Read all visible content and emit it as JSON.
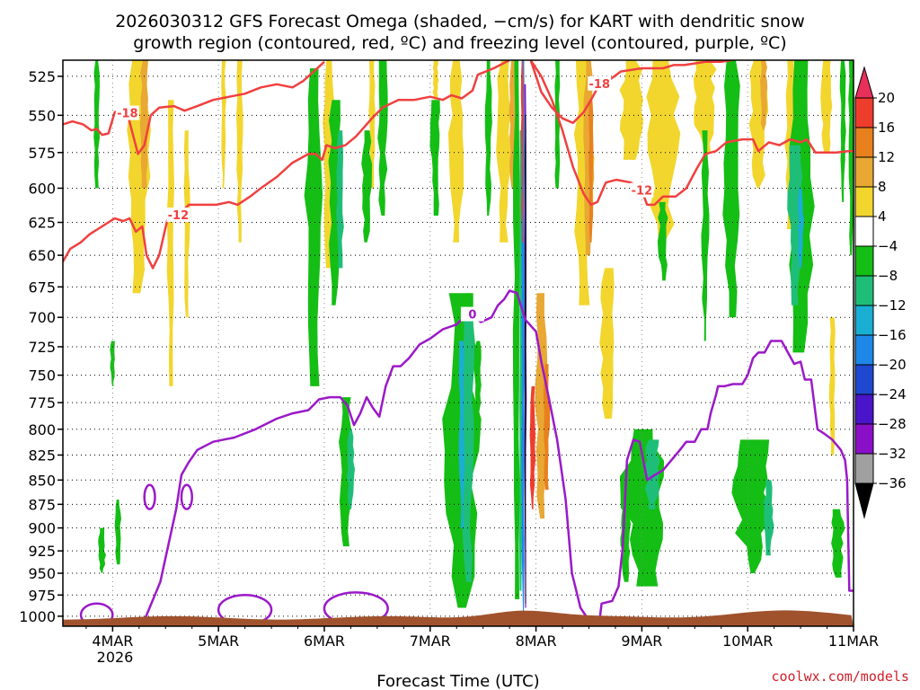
{
  "title_line1": "2026030312 GFS Forecast Omega (shaded, −cm/s) for KART with dendritic snow",
  "title_line2": "growth region (contoured, red, ºC) and freezing level (contoured, purple, ºC)",
  "credit": "coolwx.com/models",
  "chart_data": {
    "type": "heatmap",
    "title": "2026030312 GFS Forecast Omega (shaded, −cm/s) for KART with dendritic snow growth region (contoured, red, ºC) and freezing level (contoured, purple, ºC)",
    "xlabel": "Forecast Time (UTC)",
    "ylabel": "",
    "x_ticks": [
      "4MAR",
      "5MAR",
      "6MAR",
      "7MAR",
      "8MAR",
      "9MAR",
      "10MAR",
      "11MAR"
    ],
    "x_year": "2026",
    "x_range_days": [
      3.53,
      11.0
    ],
    "y_ticks": [
      525,
      550,
      575,
      600,
      625,
      650,
      675,
      700,
      725,
      750,
      775,
      800,
      825,
      850,
      875,
      900,
      925,
      950,
      975,
      1000
    ],
    "y_range_hpa": [
      515,
      1012
    ],
    "y_scale": "log",
    "grid": "dotted",
    "colorbar": {
      "labels": [
        "20",
        "16",
        "12",
        "8",
        "4",
        "−4",
        "−8",
        "−12",
        "−16",
        "−20",
        "−24",
        "−28",
        "−32",
        "−36"
      ],
      "levels": [
        20,
        16,
        12,
        8,
        4,
        -4,
        -8,
        -12,
        -16,
        -20,
        -24,
        -28,
        -32,
        -36
      ],
      "colors": [
        "#e8305a",
        "#ee3d2d",
        "#e8801e",
        "#e8a833",
        "#f2d62e",
        "#ffffff",
        "#14be14",
        "#1fbe78",
        "#1aaed2",
        "#1e88e8",
        "#1f48d0",
        "#4a14c8",
        "#8a10c8",
        "#a0a0a0",
        "#000000"
      ]
    },
    "series": [
      {
        "name": "dendritic_upper_-18C",
        "color": "#f04040",
        "label": "-18",
        "points": [
          [
            3.53,
            556
          ],
          [
            3.62,
            554
          ],
          [
            3.72,
            556
          ],
          [
            3.8,
            560
          ],
          [
            3.85,
            559
          ],
          [
            3.9,
            563
          ],
          [
            3.96,
            562
          ],
          [
            4.02,
            548
          ],
          [
            4.08,
            546
          ],
          [
            4.14,
            549
          ],
          [
            4.2,
            565
          ],
          [
            4.24,
            576
          ],
          [
            4.3,
            570
          ],
          [
            4.36,
            550
          ],
          [
            4.44,
            545
          ],
          [
            4.58,
            544
          ],
          [
            4.68,
            547
          ],
          [
            4.8,
            544
          ],
          [
            4.95,
            540
          ],
          [
            5.1,
            538
          ],
          [
            5.25,
            536
          ],
          [
            5.4,
            532
          ],
          [
            5.55,
            530
          ],
          [
            5.7,
            532
          ],
          [
            5.8,
            528
          ],
          [
            5.9,
            522
          ],
          [
            6.0,
            516
          ]
        ]
      },
      {
        "name": "dendritic_lower_-12C",
        "color": "#f04040",
        "label": "-12",
        "points": [
          [
            3.53,
            655
          ],
          [
            3.6,
            645
          ],
          [
            3.7,
            640
          ],
          [
            3.78,
            634
          ],
          [
            3.86,
            630
          ],
          [
            3.94,
            626
          ],
          [
            4.02,
            622
          ],
          [
            4.1,
            624
          ],
          [
            4.16,
            622
          ],
          [
            4.22,
            632
          ],
          [
            4.28,
            628
          ],
          [
            4.32,
            650
          ],
          [
            4.38,
            660
          ],
          [
            4.44,
            650
          ],
          [
            4.52,
            622
          ],
          [
            4.62,
            620
          ],
          [
            4.72,
            612
          ],
          [
            4.85,
            612
          ],
          [
            4.98,
            612
          ],
          [
            5.1,
            610
          ],
          [
            5.18,
            612
          ],
          [
            5.3,
            606
          ],
          [
            5.4,
            600
          ],
          [
            5.55,
            592
          ],
          [
            5.7,
            582
          ],
          [
            5.85,
            576
          ],
          [
            5.92,
            576
          ],
          [
            5.98,
            580
          ],
          [
            6.02,
            570
          ],
          [
            6.1,
            572
          ],
          [
            6.2,
            570
          ],
          [
            6.3,
            564
          ],
          [
            6.45,
            552
          ],
          [
            6.55,
            545
          ],
          [
            6.7,
            540
          ],
          [
            6.85,
            540
          ],
          [
            7.0,
            538
          ],
          [
            7.12,
            540
          ],
          [
            7.2,
            537
          ],
          [
            7.3,
            539
          ],
          [
            7.4,
            534
          ],
          [
            7.45,
            524
          ],
          [
            7.6,
            520
          ],
          [
            7.75,
            515
          ]
        ]
      },
      {
        "name": "dendritic_-18C_right",
        "color": "#f04040",
        "label": "-18",
        "points": [
          [
            7.95,
            515
          ],
          [
            8.05,
            535
          ],
          [
            8.15,
            545
          ],
          [
            8.25,
            552
          ],
          [
            8.35,
            555
          ],
          [
            8.45,
            548
          ],
          [
            8.52,
            540
          ],
          [
            8.6,
            530
          ],
          [
            8.68,
            528
          ],
          [
            8.76,
            524
          ],
          [
            8.8,
            522
          ],
          [
            8.9,
            521
          ],
          [
            9.0,
            520
          ],
          [
            9.1,
            520
          ],
          [
            9.2,
            520
          ],
          [
            9.3,
            518
          ],
          [
            9.4,
            518
          ],
          [
            9.6,
            516
          ],
          [
            9.75,
            516
          ],
          [
            9.85,
            515
          ]
        ]
      },
      {
        "name": "dendritic_-12C_right",
        "color": "#f04040",
        "label": "-12",
        "points": [
          [
            7.95,
            515
          ],
          [
            8.05,
            525
          ],
          [
            8.15,
            540
          ],
          [
            8.25,
            560
          ],
          [
            8.35,
            585
          ],
          [
            8.45,
            604
          ],
          [
            8.52,
            612
          ],
          [
            8.58,
            610
          ],
          [
            8.66,
            596
          ],
          [
            8.76,
            594
          ],
          [
            8.9,
            596
          ],
          [
            9.0,
            602
          ],
          [
            9.05,
            612
          ],
          [
            9.12,
            612
          ],
          [
            9.2,
            606
          ],
          [
            9.32,
            606
          ],
          [
            9.42,
            600
          ],
          [
            9.52,
            586
          ],
          [
            9.6,
            576
          ],
          [
            9.7,
            574
          ],
          [
            9.8,
            568
          ],
          [
            9.95,
            566
          ],
          [
            10.05,
            566
          ],
          [
            10.1,
            574
          ],
          [
            10.2,
            568
          ],
          [
            10.3,
            570
          ],
          [
            10.4,
            566
          ],
          [
            10.5,
            568
          ],
          [
            10.56,
            566
          ],
          [
            10.64,
            575
          ],
          [
            10.72,
            575
          ],
          [
            10.84,
            575
          ],
          [
            10.95,
            574
          ],
          [
            11.0,
            574
          ]
        ]
      },
      {
        "name": "freezing_level_0C",
        "color": "#9b19c8",
        "label": "0",
        "points": [
          [
            4.3,
            1005
          ],
          [
            4.45,
            960
          ],
          [
            4.6,
            880
          ],
          [
            4.65,
            845
          ],
          [
            4.72,
            832
          ],
          [
            4.8,
            820
          ],
          [
            4.95,
            812
          ],
          [
            5.15,
            808
          ],
          [
            5.35,
            800
          ],
          [
            5.55,
            790
          ],
          [
            5.7,
            785
          ],
          [
            5.85,
            782
          ],
          [
            5.95,
            772
          ],
          [
            6.05,
            770
          ],
          [
            6.15,
            770
          ],
          [
            6.22,
            778
          ],
          [
            6.28,
            796
          ],
          [
            6.34,
            785
          ],
          [
            6.4,
            770
          ],
          [
            6.46,
            780
          ],
          [
            6.52,
            788
          ],
          [
            6.58,
            760
          ],
          [
            6.65,
            742
          ],
          [
            6.72,
            742
          ],
          [
            6.8,
            735
          ],
          [
            6.9,
            723
          ],
          [
            7.0,
            718
          ],
          [
            7.12,
            710
          ],
          [
            7.25,
            706
          ],
          [
            7.32,
            700
          ],
          [
            7.4,
            698
          ],
          [
            7.48,
            704
          ],
          [
            7.58,
            700
          ],
          [
            7.64,
            690
          ],
          [
            7.7,
            685
          ],
          [
            7.75,
            678
          ],
          [
            7.82,
            680
          ],
          [
            7.9,
            702
          ],
          [
            8.0,
            712
          ],
          [
            8.05,
            738
          ],
          [
            8.12,
            770
          ],
          [
            8.2,
            810
          ],
          [
            8.28,
            870
          ],
          [
            8.34,
            950
          ],
          [
            8.42,
            990
          ],
          [
            8.5,
            1005
          ],
          [
            8.6,
            1005
          ],
          [
            8.62,
            985
          ],
          [
            8.72,
            982
          ],
          [
            8.78,
            965
          ],
          [
            8.82,
            920
          ],
          [
            8.86,
            830
          ],
          [
            8.92,
            810
          ],
          [
            8.98,
            812
          ],
          [
            9.05,
            850
          ],
          [
            9.12,
            845
          ],
          [
            9.2,
            840
          ],
          [
            9.28,
            830
          ],
          [
            9.36,
            820
          ],
          [
            9.42,
            812
          ],
          [
            9.5,
            812
          ],
          [
            9.56,
            800
          ],
          [
            9.62,
            800
          ],
          [
            9.65,
            785
          ],
          [
            9.7,
            768
          ],
          [
            9.72,
            760
          ],
          [
            9.78,
            760
          ],
          [
            9.86,
            758
          ],
          [
            9.95,
            758
          ],
          [
            10.0,
            750
          ],
          [
            10.05,
            735
          ],
          [
            10.1,
            730
          ],
          [
            10.16,
            730
          ],
          [
            10.22,
            720
          ],
          [
            10.32,
            720
          ],
          [
            10.38,
            730
          ],
          [
            10.44,
            740
          ],
          [
            10.5,
            738
          ],
          [
            10.54,
            754
          ],
          [
            10.6,
            754
          ],
          [
            10.66,
            800
          ],
          [
            10.72,
            804
          ],
          [
            10.8,
            810
          ],
          [
            10.88,
            820
          ],
          [
            10.92,
            830
          ],
          [
            10.94,
            850
          ],
          [
            10.96,
            970
          ],
          [
            11.0,
            970
          ]
        ]
      }
    ]
  }
}
